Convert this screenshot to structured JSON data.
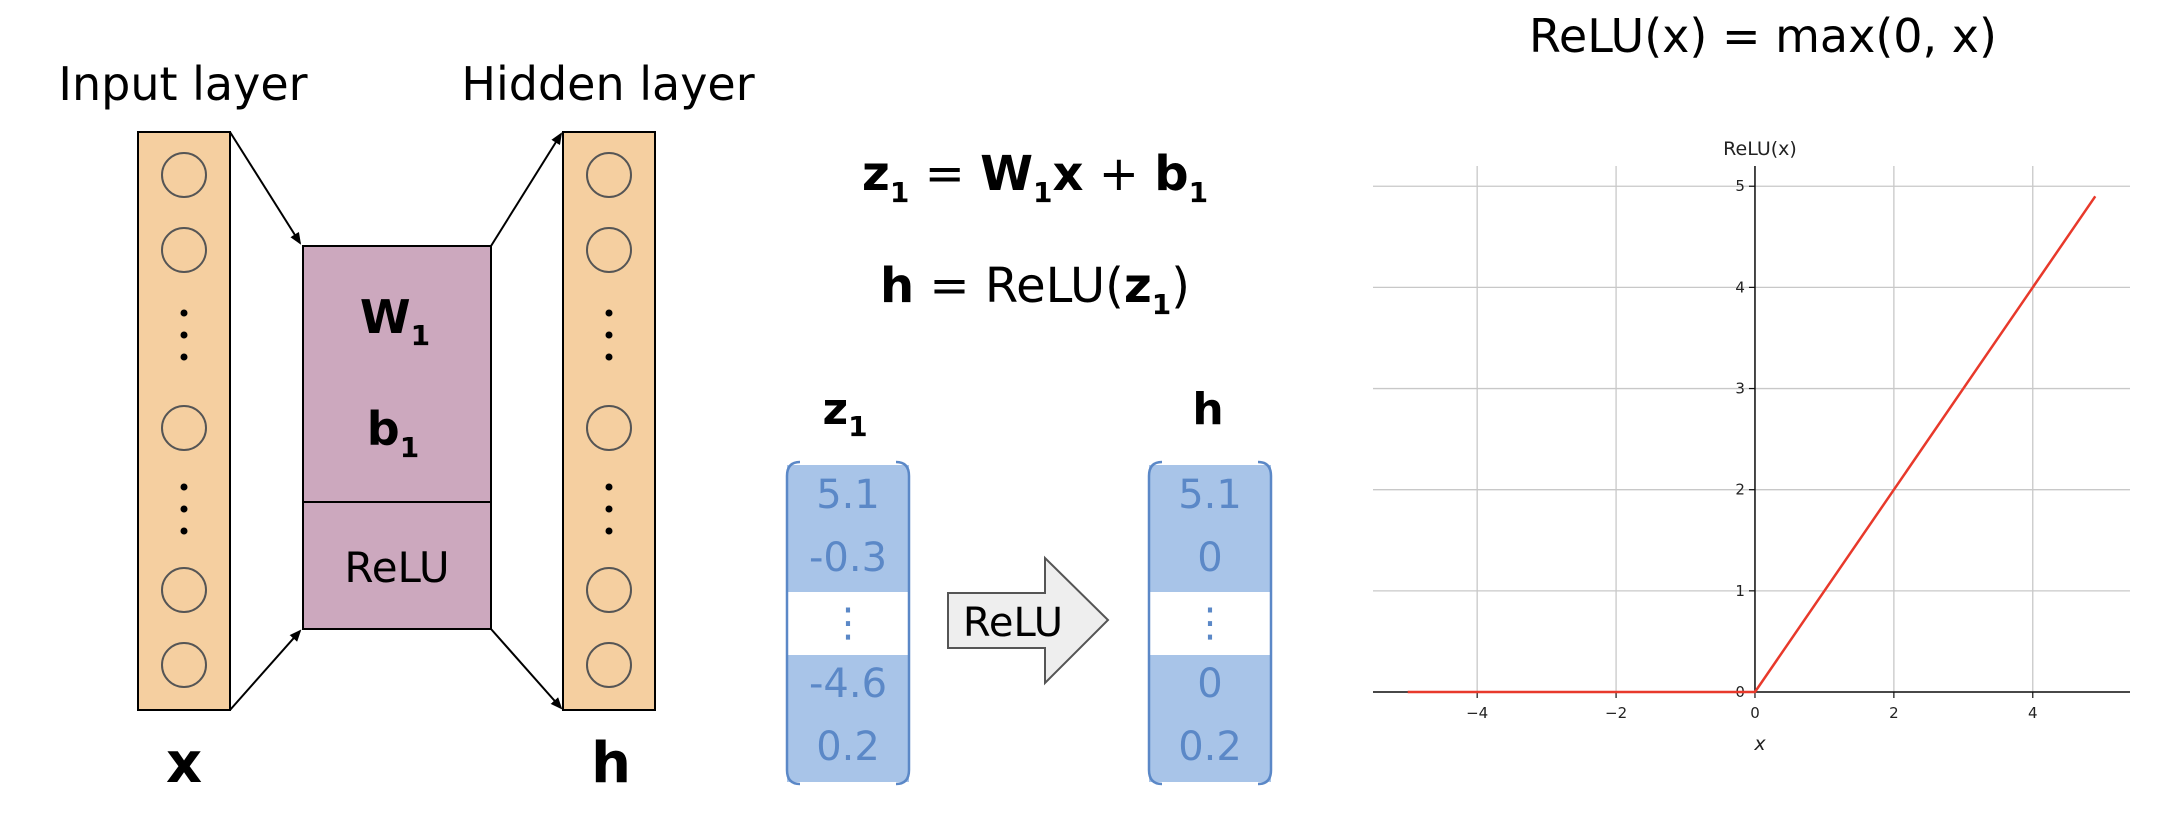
{
  "network": {
    "input_label": "Input layer",
    "hidden_label": "Hidden layer",
    "input_var": "x",
    "hidden_var": "h",
    "weight": {
      "base": "W",
      "sub": "1"
    },
    "bias": {
      "base": "b",
      "sub": "1"
    },
    "activation": "ReLU",
    "colors": {
      "layer_fill": "#F5CFA0",
      "box_fill": "#CCA8BE"
    }
  },
  "equations": {
    "eq1": {
      "z": "z",
      "z_sub": "1",
      "equals": " = ",
      "w": "W",
      "w_sub": "1",
      "x": "x",
      "plus": " + ",
      "b": "b",
      "b_sub": "1"
    },
    "eq2": {
      "h": "h",
      "equals": " = ReLU(",
      "z": "z",
      "z_sub": "1",
      "close": ")"
    }
  },
  "vectors": {
    "z_label": {
      "base": "z",
      "sub": "1"
    },
    "h_label": "h",
    "z_values": [
      "5.1",
      "-0.3",
      "⋮",
      "-4.6",
      "0.2"
    ],
    "h_values": [
      "5.1",
      "0",
      "⋮",
      "0",
      "0.2"
    ],
    "arrow_label": "ReLU",
    "colors": {
      "vector_fill": "#A8C4E8",
      "vector_text": "#5B88C7"
    }
  },
  "chart_title": "ReLU(x) = max(0, x)",
  "chart_data": {
    "type": "line",
    "xlabel": "x",
    "ylabel": "ReLU(x)",
    "xlim": [
      -5.5,
      5.4
    ],
    "ylim": [
      0,
      5.2
    ],
    "x_ticks": [
      "−4",
      "−2",
      "0",
      "2",
      "4"
    ],
    "y_ticks": [
      "0",
      "1",
      "2",
      "3",
      "4",
      "5"
    ],
    "grid": true,
    "series": [
      {
        "color": "#E8392B",
        "x": [
          -5,
          0,
          4.9
        ],
        "y": [
          0,
          0,
          4.9
        ]
      }
    ]
  }
}
